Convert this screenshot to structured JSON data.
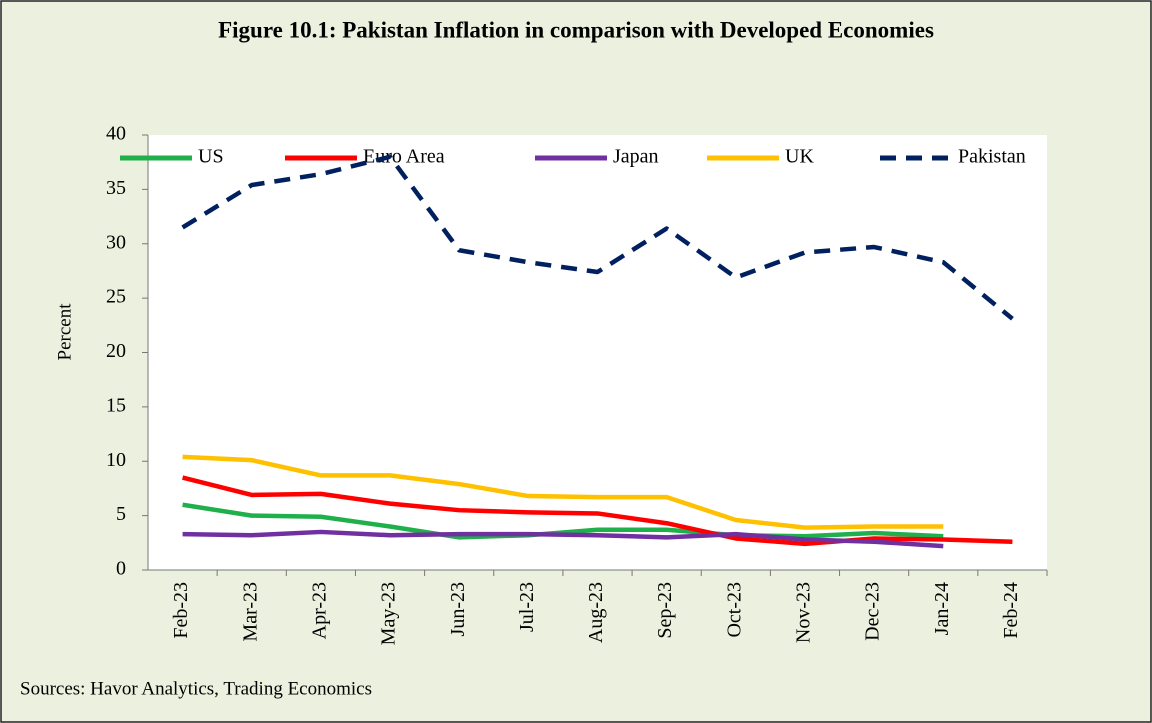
{
  "chart_data": {
    "type": "line",
    "title": "Figure 10.1: Pakistan Inflation in comparison with Developed Economies",
    "y_label": "Percent",
    "source": "Sources:   Havor Analytics,  Trading Economics",
    "categories": [
      "Feb-23",
      "Mar-23",
      "Apr-23",
      "May-23",
      "Jun-23",
      "Jul-23",
      "Aug-23",
      "Sep-23",
      "Oct-23",
      "Nov-23",
      "Dec-23",
      "Jan-24",
      "Feb-24"
    ],
    "series": [
      {
        "name": "US",
        "color": "#1fb04b",
        "values": [
          6.0,
          5.0,
          4.9,
          4.0,
          3.0,
          3.2,
          3.7,
          3.7,
          3.2,
          3.1,
          3.4,
          3.1,
          null
        ]
      },
      {
        "name": "Euro Area",
        "color": "#ff0000",
        "values": [
          8.5,
          6.9,
          7.0,
          6.1,
          5.5,
          5.3,
          5.2,
          4.3,
          2.9,
          2.4,
          2.9,
          2.8,
          2.6
        ]
      },
      {
        "name": "Japan",
        "color": "#7030a0",
        "values": [
          3.3,
          3.2,
          3.5,
          3.2,
          3.3,
          3.3,
          3.2,
          3.0,
          3.3,
          2.8,
          2.6,
          2.2,
          null
        ]
      },
      {
        "name": "UK",
        "color": "#ffc000",
        "values": [
          10.4,
          10.1,
          8.7,
          8.7,
          7.9,
          6.8,
          6.7,
          6.7,
          4.6,
          3.9,
          4.0,
          4.0,
          null
        ]
      },
      {
        "name": "Pakistan",
        "color": "#002060",
        "dashed": true,
        "values": [
          31.5,
          35.4,
          36.4,
          38.0,
          29.4,
          28.3,
          27.4,
          31.4,
          26.9,
          29.2,
          29.7,
          28.3,
          23.1
        ]
      }
    ],
    "ylim": [
      0,
      40
    ],
    "yticks": [
      0,
      5,
      10,
      15,
      20,
      25,
      30,
      35,
      40
    ],
    "grid": false,
    "legend": "top"
  }
}
